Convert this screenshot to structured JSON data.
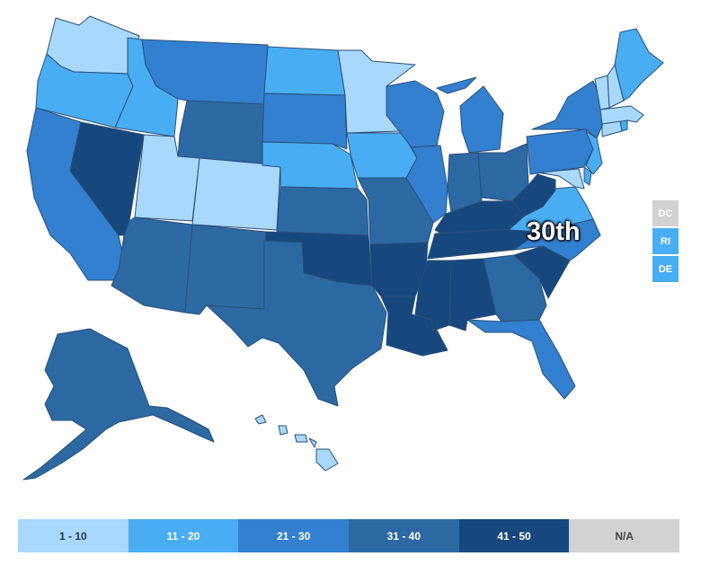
{
  "colors": {
    "r1_10": "#a8d8fb",
    "r11_20": "#49adf3",
    "r21_30": "#3280cf",
    "r31_40": "#2c69a3",
    "r41_50": "#17487d",
    "na": "#d2d2d2",
    "border": "#2a4f7a"
  },
  "highlight": {
    "label": "30th"
  },
  "small_states": [
    {
      "label": "DC",
      "bucket": "na"
    },
    {
      "label": "RI",
      "bucket": "r11_20"
    },
    {
      "label": "DE",
      "bucket": "r11_20"
    }
  ],
  "legend": [
    {
      "label": "1 - 10",
      "bucket": "r1_10",
      "text_color": "#1f3550"
    },
    {
      "label": "11 - 20",
      "bucket": "r11_20",
      "text_color": "#ffffff"
    },
    {
      "label": "21 - 30",
      "bucket": "r21_30",
      "text_color": "#ffffff"
    },
    {
      "label": "31 - 40",
      "bucket": "r31_40",
      "text_color": "#ffffff"
    },
    {
      "label": "41 - 50",
      "bucket": "r41_50",
      "text_color": "#ffffff"
    },
    {
      "label": "N/A",
      "bucket": "na",
      "text_color": "#444444"
    }
  ],
  "state_buckets": {
    "WA": "r1_10",
    "OR": "r11_20",
    "CA": "r21_30",
    "ID": "r11_20",
    "NV": "r41_50",
    "MT": "r21_30",
    "WY": "r31_40",
    "UT": "r1_10",
    "CO": "r1_10",
    "AZ": "r31_40",
    "NM": "r31_40",
    "ND": "r11_20",
    "SD": "r21_30",
    "NE": "r11_20",
    "KS": "r31_40",
    "OK": "r41_50",
    "TX": "r31_40",
    "MN": "r1_10",
    "IA": "r11_20",
    "MO": "r31_40",
    "AR": "r41_50",
    "LA": "r41_50",
    "WI": "r21_30",
    "IL": "r21_30",
    "MI": "r21_30",
    "IN": "r31_40",
    "OH": "r31_40",
    "KY": "r41_50",
    "TN": "r41_50",
    "MS": "r41_50",
    "AL": "r41_50",
    "GA": "r31_40",
    "FL": "r21_30",
    "SC": "r41_50",
    "NC": "r21_30",
    "VA": "r11_20",
    "WV": "r41_50",
    "MD": "r1_10",
    "DE2": "r11_20",
    "PA": "r21_30",
    "NJ": "r11_20",
    "NY": "r21_30",
    "CT": "r1_10",
    "RI2": "r11_20",
    "MA": "r1_10",
    "VT": "r1_10",
    "NH": "r1_10",
    "ME": "r11_20",
    "AK": "r31_40",
    "HI": "r1_10"
  }
}
